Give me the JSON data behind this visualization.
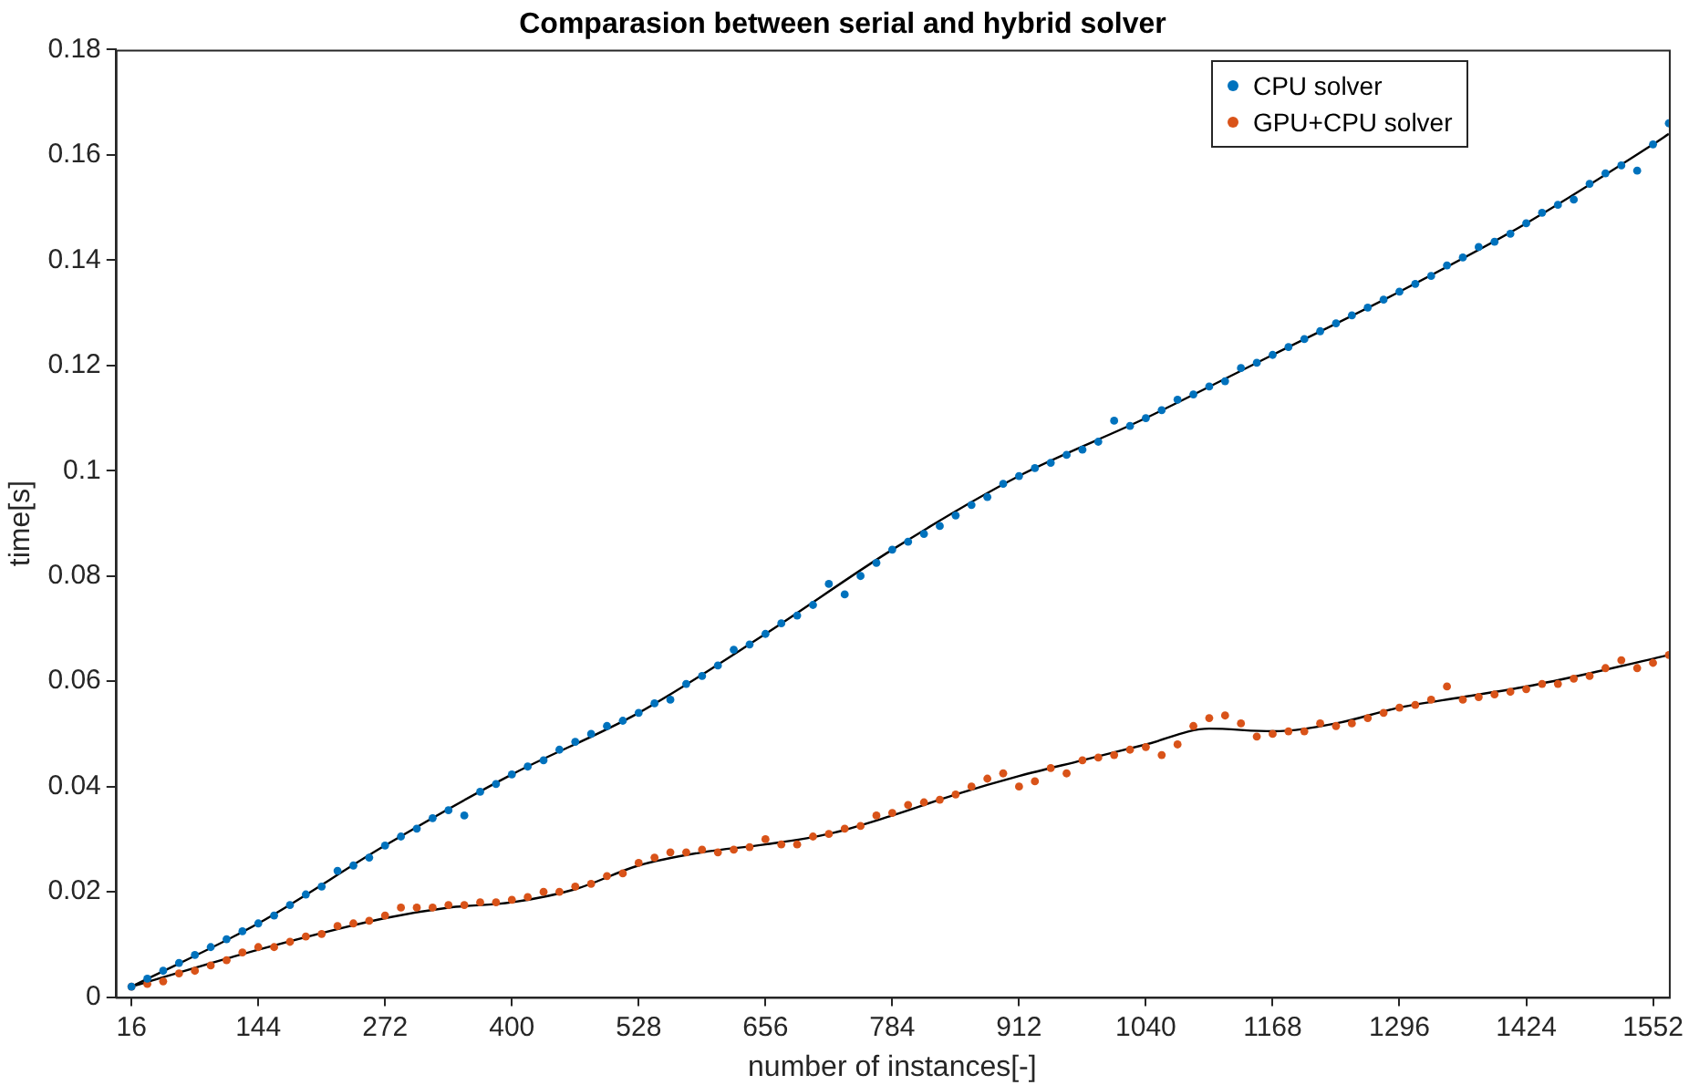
{
  "chart_data": {
    "type": "scatter",
    "title": "Comparasion between serial and hybrid solver",
    "xlabel": "number of instances[-]",
    "ylabel": "time[s]",
    "x": [
      16,
      32,
      48,
      64,
      80,
      96,
      112,
      128,
      144,
      160,
      176,
      192,
      208,
      224,
      240,
      256,
      272,
      288,
      304,
      320,
      336,
      352,
      368,
      384,
      400,
      416,
      432,
      448,
      464,
      480,
      496,
      512,
      528,
      544,
      560,
      576,
      592,
      608,
      624,
      640,
      656,
      672,
      688,
      704,
      720,
      736,
      752,
      768,
      784,
      800,
      816,
      832,
      848,
      864,
      880,
      896,
      912,
      928,
      944,
      960,
      976,
      992,
      1008,
      1024,
      1040,
      1056,
      1072,
      1088,
      1104,
      1120,
      1136,
      1152,
      1168,
      1184,
      1200,
      1216,
      1232,
      1248,
      1264,
      1280,
      1296,
      1312,
      1328,
      1344,
      1360,
      1376,
      1392,
      1408,
      1424,
      1440,
      1456,
      1472,
      1488,
      1504,
      1520,
      1536,
      1552,
      1568
    ],
    "series": [
      {
        "name": "CPU solver",
        "color": "#0072bd",
        "values": [
          0.002,
          0.0035,
          0.005,
          0.0065,
          0.008,
          0.0095,
          0.011,
          0.0125,
          0.014,
          0.0155,
          0.0175,
          0.0195,
          0.021,
          0.024,
          0.025,
          0.0265,
          0.0288,
          0.0305,
          0.032,
          0.034,
          0.0355,
          0.0345,
          0.039,
          0.0405,
          0.0423,
          0.0438,
          0.045,
          0.047,
          0.0485,
          0.05,
          0.0515,
          0.0525,
          0.054,
          0.0558,
          0.0565,
          0.0595,
          0.061,
          0.063,
          0.066,
          0.067,
          0.069,
          0.071,
          0.0725,
          0.0745,
          0.0785,
          0.0765,
          0.08,
          0.0825,
          0.085,
          0.0865,
          0.088,
          0.0895,
          0.0915,
          0.0935,
          0.095,
          0.0975,
          0.099,
          0.1005,
          0.1015,
          0.103,
          0.104,
          0.1055,
          0.1095,
          0.1085,
          0.11,
          0.1115,
          0.1135,
          0.1145,
          0.116,
          0.117,
          0.1195,
          0.1205,
          0.122,
          0.1235,
          0.125,
          0.1265,
          0.128,
          0.1295,
          0.131,
          0.1325,
          0.134,
          0.1355,
          0.137,
          0.139,
          0.1405,
          0.1425,
          0.1435,
          0.145,
          0.147,
          0.149,
          0.1505,
          0.1515,
          0.1545,
          0.1565,
          0.158,
          0.157,
          0.162,
          0.166
        ]
      },
      {
        "name": "GPU+CPU solver",
        "color": "#d95319",
        "values": [
          0.002,
          0.0025,
          0.003,
          0.0045,
          0.005,
          0.006,
          0.007,
          0.0085,
          0.0095,
          0.0095,
          0.0105,
          0.0115,
          0.012,
          0.0135,
          0.014,
          0.0145,
          0.0155,
          0.017,
          0.017,
          0.017,
          0.0175,
          0.0175,
          0.018,
          0.018,
          0.0185,
          0.019,
          0.02,
          0.02,
          0.021,
          0.0215,
          0.023,
          0.0235,
          0.0255,
          0.0265,
          0.0275,
          0.0275,
          0.028,
          0.0275,
          0.028,
          0.0285,
          0.03,
          0.029,
          0.029,
          0.0305,
          0.031,
          0.032,
          0.0325,
          0.0345,
          0.035,
          0.0365,
          0.037,
          0.0375,
          0.0385,
          0.04,
          0.0415,
          0.0425,
          0.04,
          0.041,
          0.0435,
          0.0425,
          0.045,
          0.0455,
          0.046,
          0.047,
          0.0475,
          0.046,
          0.048,
          0.0515,
          0.053,
          0.0535,
          0.052,
          0.0495,
          0.05,
          0.0505,
          0.0505,
          0.052,
          0.0515,
          0.052,
          0.053,
          0.054,
          0.055,
          0.0555,
          0.0565,
          0.059,
          0.0565,
          0.057,
          0.0575,
          0.058,
          0.0585,
          0.0595,
          0.0595,
          0.0605,
          0.061,
          0.0625,
          0.064,
          0.0625,
          0.0635,
          0.065
        ]
      },
      {
        "type": "line",
        "marker": "none",
        "color": "#000000",
        "x": [
          16,
          144,
          272,
          400,
          528,
          656,
          784,
          912,
          1040,
          1168,
          1296,
          1424,
          1552,
          1568
        ],
        "values": [
          0.002,
          0.014,
          0.0288,
          0.0423,
          0.054,
          0.069,
          0.085,
          0.099,
          0.11,
          0.122,
          0.134,
          0.147,
          0.162,
          0.164
        ]
      },
      {
        "type": "line",
        "marker": "none",
        "color": "#000000",
        "x": [
          16,
          144,
          272,
          336,
          400,
          464,
          528,
          592,
          656,
          720,
          784,
          848,
          912,
          976,
          1040,
          1104,
          1168,
          1232,
          1296,
          1360,
          1424,
          1488,
          1568
        ],
        "values": [
          0.002,
          0.009,
          0.015,
          0.017,
          0.018,
          0.0205,
          0.025,
          0.0275,
          0.029,
          0.031,
          0.0345,
          0.0385,
          0.042,
          0.045,
          0.048,
          0.051,
          0.0505,
          0.052,
          0.055,
          0.057,
          0.059,
          0.0615,
          0.065
        ]
      }
    ],
    "xlim": [
      0,
      1568
    ],
    "xticks": [
      16,
      144,
      272,
      400,
      528,
      656,
      784,
      912,
      1040,
      1168,
      1296,
      1424,
      1552
    ],
    "ylim": [
      0,
      0.18
    ],
    "yticks": [
      0,
      0.02,
      0.04,
      0.06,
      0.08,
      0.1,
      0.12,
      0.14,
      0.16,
      0.18
    ],
    "legend": "top right",
    "marker": "circle",
    "grid": false
  }
}
